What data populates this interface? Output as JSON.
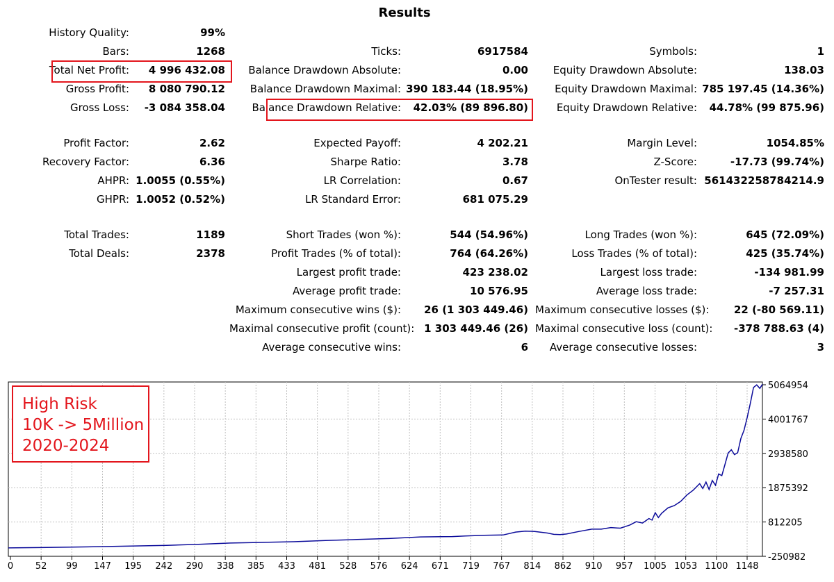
{
  "title": "Results",
  "rows": [
    {
      "y": 48,
      "col1": {
        "label": "History Quality:",
        "value": "99%"
      }
    },
    {
      "y": 75,
      "col1": {
        "label": "Bars:",
        "value": "1268"
      },
      "col2": {
        "label": "Ticks:",
        "value": "6917584"
      },
      "col3": {
        "label": "Symbols:",
        "value": "1"
      }
    },
    {
      "y": 102,
      "col1": {
        "label": "Total Net Profit:",
        "value": "4 996 432.08"
      },
      "col2": {
        "label": "Balance Drawdown Absolute:",
        "value": "0.00"
      },
      "col3": {
        "label": "Equity Drawdown Absolute:",
        "value": "138.03"
      }
    },
    {
      "y": 129,
      "col1": {
        "label": "Gross Profit:",
        "value": "8 080 790.12"
      },
      "col2": {
        "label": "Balance Drawdown Maximal:",
        "value": "390 183.44 (18.95%)"
      },
      "col3": {
        "label": "Equity Drawdown Maximal:",
        "value": "785 197.45 (14.36%)"
      }
    },
    {
      "y": 156,
      "col1": {
        "label": "Gross Loss:",
        "value": "-3 084 358.04"
      },
      "col2": {
        "label": "Balance Drawdown Relative:",
        "value": "42.03% (89 896.80)"
      },
      "col3": {
        "label": "Equity Drawdown Relative:",
        "value": "44.78% (99 875.96)"
      }
    },
    {
      "y": 207,
      "col1": {
        "label": "Profit Factor:",
        "value": "2.62"
      },
      "col2": {
        "label": "Expected Payoff:",
        "value": "4 202.21"
      },
      "col3": {
        "label": "Margin Level:",
        "value": "1054.85%"
      }
    },
    {
      "y": 234,
      "col1": {
        "label": "Recovery Factor:",
        "value": "6.36"
      },
      "col2": {
        "label": "Sharpe Ratio:",
        "value": "3.78"
      },
      "col3": {
        "label": "Z-Score:",
        "value": "-17.73 (99.74%)"
      }
    },
    {
      "y": 261,
      "col1": {
        "label": "AHPR:",
        "value": "1.0055 (0.55%)"
      },
      "col2": {
        "label": "LR Correlation:",
        "value": "0.67"
      },
      "col3": {
        "label": "OnTester result:",
        "value": "561432258784214.9"
      }
    },
    {
      "y": 288,
      "col1": {
        "label": "GHPR:",
        "value": "1.0052 (0.52%)"
      },
      "col2": {
        "label": "LR Standard Error:",
        "value": "681 075.29"
      }
    },
    {
      "y": 339,
      "col1": {
        "label": "Total Trades:",
        "value": "1189"
      },
      "col2": {
        "label": "Short Trades (won %):",
        "value": "544 (54.96%)"
      },
      "col3": {
        "label": "Long Trades (won %):",
        "value": "645 (72.09%)"
      }
    },
    {
      "y": 366,
      "col1": {
        "label": "Total Deals:",
        "value": "2378"
      },
      "col2": {
        "label": "Profit Trades (% of total):",
        "value": "764 (64.26%)"
      },
      "col3": {
        "label": "Loss Trades (% of total):",
        "value": "425 (35.74%)"
      }
    },
    {
      "y": 393,
      "col2": {
        "label": "Largest profit trade:",
        "value": "423 238.02"
      },
      "col3": {
        "label": "Largest loss trade:",
        "value": "-134 981.99"
      }
    },
    {
      "y": 420,
      "col2": {
        "label": "Average profit trade:",
        "value": "10 576.95"
      },
      "col3": {
        "label": "Average loss trade:",
        "value": "-7 257.31"
      }
    },
    {
      "y": 447,
      "col2": {
        "label": "Maximum consecutive wins ($):",
        "value": "26 (1 303 449.46)"
      },
      "col3": {
        "label": "Maximum consecutive losses ($):",
        "value": "22 (-80 569.11)"
      }
    },
    {
      "y": 474,
      "col2": {
        "label": "Maximal consecutive profit (count):",
        "value": "1 303 449.46 (26)"
      },
      "col3": {
        "label": "Maximal consecutive loss (count):",
        "value": "-378 788.63 (4)"
      }
    },
    {
      "y": 501,
      "col2": {
        "label": "Average consecutive wins:",
        "value": "6"
      },
      "col3": {
        "label": "Average consecutive losses:",
        "value": "3"
      }
    }
  ],
  "note": {
    "lines": [
      "High Risk",
      "10K -> 5Million",
      "2020-2024"
    ],
    "color": "#e3151c"
  },
  "colors": {
    "line": "#0b0b9a",
    "highlight": "#e3151c",
    "grid": "#c0c0c0"
  },
  "chart_data": {
    "type": "line",
    "x_ticks": [
      "0",
      "52",
      "99",
      "147",
      "195",
      "242",
      "290",
      "338",
      "385",
      "433",
      "481",
      "528",
      "576",
      "624",
      "671",
      "719",
      "767",
      "814",
      "862",
      "910",
      "957",
      "1005",
      "1053",
      "1100",
      "1148"
    ],
    "y_ticks": [
      "5064954",
      "4001767",
      "2938580",
      "1875392",
      "812205",
      "-250982"
    ],
    "ylim": [
      -250982,
      5064954
    ],
    "xlim": [
      0,
      1189
    ],
    "series": [
      {
        "x": [
          0,
          50,
          100,
          150,
          200,
          250,
          300,
          350,
          400,
          450,
          500,
          550,
          600,
          650,
          700,
          720,
          750,
          780,
          800,
          815,
          830,
          850,
          860,
          870,
          880,
          900,
          920,
          935,
          950,
          965,
          980,
          990,
          1000,
          1010,
          1015,
          1020,
          1025,
          1030,
          1040,
          1050,
          1060,
          1070,
          1080,
          1090,
          1095,
          1100,
          1105,
          1110,
          1115,
          1120,
          1125,
          1130,
          1135,
          1140,
          1145,
          1150,
          1155,
          1160,
          1165,
          1170,
          1175,
          1180,
          1185,
          1189
        ],
        "y": [
          10000,
          20000,
          35000,
          50000,
          70000,
          90000,
          120000,
          160000,
          180000,
          200000,
          240000,
          270000,
          300000,
          350000,
          360000,
          380000,
          400000,
          410000,
          500000,
          530000,
          520000,
          470000,
          430000,
          420000,
          440000,
          520000,
          590000,
          590000,
          640000,
          620000,
          720000,
          820000,
          780000,
          920000,
          870000,
          1100000,
          950000,
          1080000,
          1250000,
          1320000,
          1450000,
          1650000,
          1800000,
          2000000,
          1850000,
          2050000,
          1820000,
          2100000,
          1950000,
          2300000,
          2250000,
          2600000,
          2950000,
          3050000,
          2900000,
          2960000,
          3400000,
          3650000,
          4050000,
          4500000,
          4980000,
          5060000,
          4950000,
          5080000
        ]
      }
    ],
    "grid": true
  }
}
